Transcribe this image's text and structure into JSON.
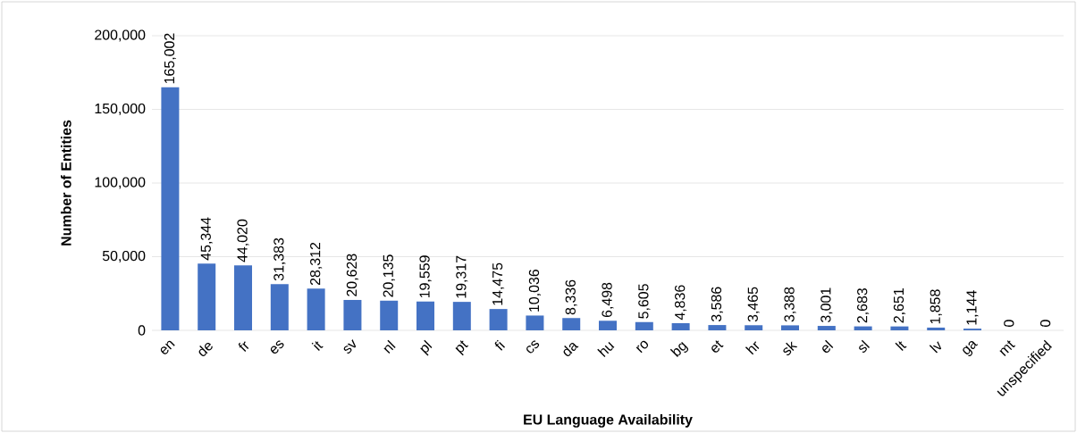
{
  "chart_data": {
    "type": "bar",
    "xlabel": "EU Language Availability",
    "ylabel": "Number of Entities",
    "categories": [
      "en",
      "de",
      "fr",
      "es",
      "it",
      "sv",
      "nl",
      "pl",
      "pt",
      "fi",
      "cs",
      "da",
      "hu",
      "ro",
      "bg",
      "et",
      "hr",
      "sk",
      "el",
      "sl",
      "lt",
      "lv",
      "ga",
      "mt",
      "unspecified"
    ],
    "values": [
      165002,
      45344,
      44020,
      31383,
      28312,
      20628,
      20135,
      19559,
      19317,
      14475,
      10036,
      8336,
      6498,
      5605,
      4836,
      3586,
      3465,
      3388,
      3001,
      2683,
      2651,
      1858,
      1144,
      0,
      0
    ],
    "value_labels": [
      "165,002",
      "45,344",
      "44,020",
      "31,383",
      "28,312",
      "20,628",
      "20,135",
      "19,559",
      "19,317",
      "14,475",
      "10,036",
      "8,336",
      "6,498",
      "5,605",
      "4,836",
      "3,586",
      "3,465",
      "3,388",
      "3,001",
      "2,683",
      "2,651",
      "1,858",
      "1,144",
      "0",
      "0"
    ],
    "color": "#4472c4",
    "ylim": [
      0,
      200000
    ],
    "yticks": [
      0,
      {
        "value": 50000,
        "label": "50,000"
      },
      {
        "value": 100000,
        "label": "100,000"
      },
      {
        "value": 150000,
        "label": "150,000"
      },
      {
        "value": 200000,
        "label": "200,000"
      }
    ],
    "grid": "y"
  }
}
